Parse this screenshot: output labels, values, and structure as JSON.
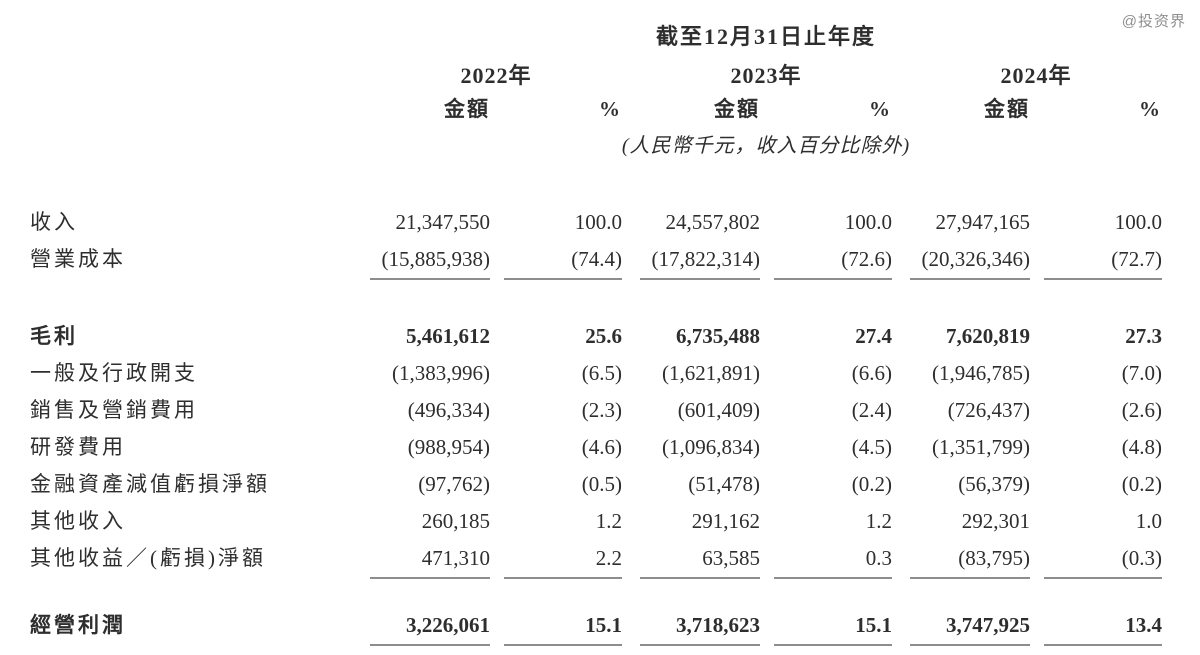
{
  "watermark": "@投资界",
  "header": {
    "period_title": "截至12月31日止年度",
    "years": [
      "2022年",
      "2023年",
      "2024年"
    ],
    "amount_label": "金額",
    "percent_label": "%",
    "unit_note": "(人民幣千元，收入百分比除外)"
  },
  "table": {
    "rows": [
      {
        "label": "收入",
        "values": [
          "21,347,550",
          "100.0",
          "24,557,802",
          "100.0",
          "27,947,165",
          "100.0"
        ]
      },
      {
        "label": "營業成本",
        "values": [
          "(15,885,938)",
          "(74.4)",
          "(17,822,314)",
          "(72.6)",
          "(20,326,346)",
          "(72.7)"
        ]
      },
      {
        "label": "毛利",
        "values": [
          "5,461,612",
          "25.6",
          "6,735,488",
          "27.4",
          "7,620,819",
          "27.3"
        ]
      },
      {
        "label": "一般及行政開支",
        "values": [
          "(1,383,996)",
          "(6.5)",
          "(1,621,891)",
          "(6.6)",
          "(1,946,785)",
          "(7.0)"
        ]
      },
      {
        "label": "銷售及營銷費用",
        "values": [
          "(496,334)",
          "(2.3)",
          "(601,409)",
          "(2.4)",
          "(726,437)",
          "(2.6)"
        ]
      },
      {
        "label": "研發費用",
        "values": [
          "(988,954)",
          "(4.6)",
          "(1,096,834)",
          "(4.5)",
          "(1,351,799)",
          "(4.8)"
        ]
      },
      {
        "label": "金融資產減值虧損淨額",
        "values": [
          "(97,762)",
          "(0.5)",
          "(51,478)",
          "(0.2)",
          "(56,379)",
          "(0.2)"
        ]
      },
      {
        "label": "其他收入",
        "values": [
          "260,185",
          "1.2",
          "291,162",
          "1.2",
          "292,301",
          "1.0"
        ]
      },
      {
        "label": "其他收益／(虧損)淨額",
        "values": [
          "471,310",
          "2.2",
          "63,585",
          "0.3",
          "(83,795)",
          "(0.3)"
        ]
      },
      {
        "label": "經營利潤",
        "values": [
          "3,226,061",
          "15.1",
          "3,718,623",
          "15.1",
          "3,747,925",
          "13.4"
        ]
      }
    ]
  },
  "colors": {
    "text": "#2e2e2e",
    "rule_line": "#8d8d8d",
    "watermark": "#8f8f8f",
    "background": "#ffffff"
  }
}
